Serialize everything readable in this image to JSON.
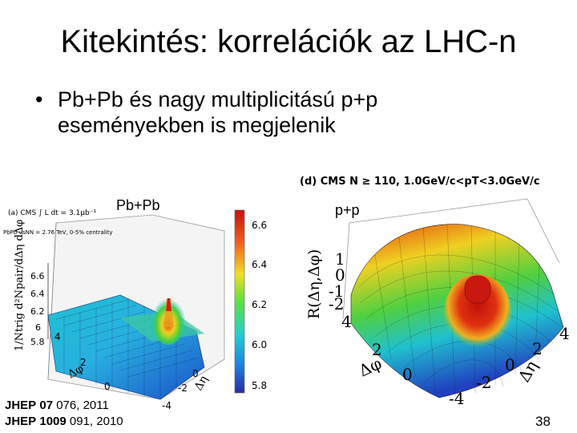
{
  "slide": {
    "title": "Kitekintés: korrelációk az LHC-n",
    "bullet": "Pb+Pb és nagy multiplicitású p+p eseményekben is megjelenik",
    "bullet_line1": "Pb+Pb és nagy multiplicitású p+p",
    "bullet_line2": "eseményekben is megjelenik",
    "page_number": "38"
  },
  "left_plot": {
    "label": "Pb+Pb",
    "header_line1": "(a) CMS  ∫ L dt = 3.1μb⁻¹",
    "header_line2": "PbPb √sNN = 2.76 TeV, 0-5% centrality",
    "zlabel": "1/Ntrig d²Npair/dΔη dΔφ",
    "z_ticks": [
      "6.6",
      "6.4",
      "6.2",
      "6",
      "5.8"
    ],
    "colorbar_ticks": [
      "6.6",
      "6.4",
      "6.2",
      "6.0",
      "5.8"
    ],
    "phi_label": "Δφ",
    "eta_label": "Δη",
    "phi_ticks": [
      "4",
      "2",
      "0"
    ],
    "eta_ticks": [
      "0",
      "-2",
      "-4"
    ]
  },
  "right_plot": {
    "label": "p+p",
    "header": "(d) CMS N ≥ 110, 1.0GeV/c<pT<3.0GeV/c",
    "zlabel": "R(Δη,Δφ)",
    "z_ticks": [
      "1",
      "0",
      "-1",
      "-2"
    ],
    "phi_label": "Δφ",
    "eta_label": "Δη",
    "phi_ticks": [
      "4",
      "2",
      "0"
    ],
    "eta_ticks": [
      "4",
      "2",
      "0",
      "-2",
      "-4"
    ]
  },
  "references": [
    {
      "journal": "JHEP",
      "volume": "07",
      "rest": "076, 2011"
    },
    {
      "journal": "JHEP",
      "volume": "1009",
      "rest": "091, 2010"
    }
  ],
  "colors": {
    "surface_low": "#1a3cc8",
    "surface_mid": "#18c8d0",
    "surface_peak": "#e02010",
    "ridge": "#f0d020"
  }
}
